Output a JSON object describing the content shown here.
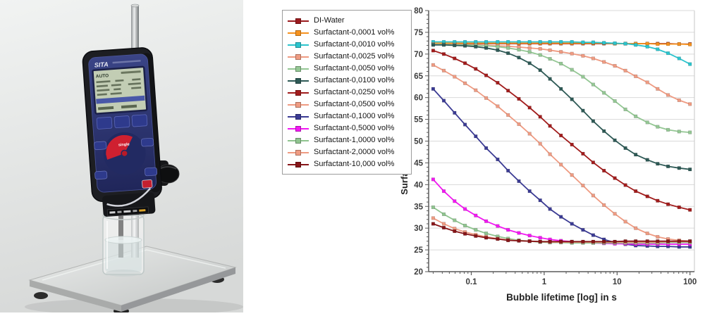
{
  "page": {
    "background": "#ffffff"
  },
  "photo": {
    "description": "bubble pressure tensiometer on stand with beaker",
    "brand": "SITA",
    "screen_status": "AUTO",
    "pad_button": "single",
    "colors": {
      "backdrop_top": "#f0f2f1",
      "backdrop_bottom": "#d7d9d8",
      "device_body": "#1d1e22",
      "device_face": "#2a3170",
      "control_pad_red": "#cf2030",
      "lcd_green": "#c2cdb4",
      "steel": "#c9cccb"
    }
  },
  "chart_data": {
    "type": "line",
    "x_scale": "log",
    "title": "",
    "xlabel": "Bubble lifetime [log] in s",
    "ylabel": "Surface tension in mN/m",
    "xlim": [
      0.026,
      115
    ],
    "ylim": [
      20,
      80
    ],
    "y_tick_step": 5,
    "x_major_ticks": [
      0.1,
      1,
      10,
      100
    ],
    "x_tick_labels": [
      "0.1",
      "1",
      "10",
      "100"
    ],
    "grid": "horizontal",
    "legend_position": "outside-left",
    "marker": "square",
    "x": [
      0.03,
      0.042,
      0.059,
      0.082,
      0.115,
      0.16,
      0.23,
      0.32,
      0.45,
      0.63,
      0.88,
      1.2,
      1.7,
      2.4,
      3.4,
      4.7,
      6.6,
      9.3,
      13,
      18,
      26,
      36,
      50,
      71,
      100
    ],
    "series": [
      {
        "name": "DI-Water",
        "color": "#9B1B1E",
        "values": [
          72.4,
          72.4,
          72.4,
          72.4,
          72.4,
          72.4,
          72.4,
          72.4,
          72.4,
          72.4,
          72.4,
          72.4,
          72.4,
          72.4,
          72.4,
          72.4,
          72.4,
          72.4,
          72.4,
          72.4,
          72.4,
          72.4,
          72.4,
          72.3,
          72.3
        ]
      },
      {
        "name": "Surfactant-0,0001 vol%",
        "color": "#F6921E",
        "values": [
          72.5,
          72.5,
          72.5,
          72.5,
          72.5,
          72.5,
          72.5,
          72.5,
          72.5,
          72.5,
          72.5,
          72.5,
          72.5,
          72.5,
          72.5,
          72.5,
          72.5,
          72.4,
          72.4,
          72.4,
          72.4,
          72.3,
          72.3,
          72.3,
          72.2
        ]
      },
      {
        "name": "Surfactant-0,0010 vol%",
        "color": "#2BC4CD",
        "values": [
          72.8,
          72.8,
          72.8,
          72.8,
          72.8,
          72.8,
          72.8,
          72.8,
          72.8,
          72.8,
          72.8,
          72.8,
          72.8,
          72.8,
          72.7,
          72.7,
          72.6,
          72.5,
          72.4,
          72.1,
          71.7,
          71.1,
          70.2,
          69.0,
          67.7
        ]
      },
      {
        "name": "Surfactant-0,0025 vol%",
        "color": "#EF9B82",
        "values": [
          72.3,
          72.2,
          72.2,
          72.1,
          72.1,
          72.0,
          71.9,
          71.8,
          71.6,
          71.4,
          71.2,
          70.9,
          70.5,
          70.1,
          69.6,
          69.0,
          68.2,
          67.3,
          66.2,
          64.9,
          63.5,
          62.0,
          60.6,
          59.4,
          58.5
        ]
      },
      {
        "name": "Surfactant-0,0050 vol%",
        "color": "#94C794",
        "values": [
          72.2,
          72.2,
          72.1,
          72.1,
          72.0,
          71.9,
          71.7,
          71.4,
          71.0,
          70.5,
          69.8,
          68.9,
          67.8,
          66.4,
          64.8,
          63.0,
          61.1,
          59.2,
          57.3,
          55.7,
          54.3,
          53.3,
          52.6,
          52.2,
          52.0
        ]
      },
      {
        "name": "Surfactant-0,0100 vol%",
        "color": "#2E5A56",
        "values": [
          72.1,
          72.1,
          72.0,
          71.9,
          71.7,
          71.4,
          70.9,
          70.2,
          69.2,
          67.9,
          66.3,
          64.3,
          62.0,
          59.6,
          57.0,
          54.6,
          52.3,
          50.2,
          48.4,
          46.9,
          45.7,
          44.8,
          44.2,
          43.8,
          43.5
        ]
      },
      {
        "name": "Surfactant-0,0250 vol%",
        "color": "#A21C1C",
        "values": [
          70.8,
          70.0,
          69.0,
          67.9,
          66.6,
          65.1,
          63.4,
          61.6,
          59.7,
          57.7,
          55.6,
          53.5,
          51.3,
          49.2,
          47.1,
          45.1,
          43.2,
          41.5,
          39.9,
          38.5,
          37.3,
          36.3,
          35.5,
          34.8,
          34.2
        ]
      },
      {
        "name": "Surfactant-0,0500 vol%",
        "color": "#EF9B82",
        "values": [
          67.5,
          66.2,
          64.8,
          63.3,
          61.7,
          59.9,
          58.0,
          56.0,
          53.9,
          51.7,
          49.4,
          47.0,
          44.6,
          42.2,
          39.8,
          37.5,
          35.3,
          33.3,
          31.5,
          30.0,
          28.8,
          28.0,
          27.5,
          27.2,
          27.0
        ]
      },
      {
        "name": "Surfactant-0,1000 vol%",
        "color": "#3B3B94",
        "values": [
          62.0,
          59.3,
          56.5,
          53.8,
          51.1,
          48.4,
          45.8,
          43.2,
          40.8,
          38.5,
          36.4,
          34.4,
          32.6,
          31.0,
          29.6,
          28.4,
          27.4,
          26.7,
          26.3,
          26.0,
          25.9,
          25.8,
          25.8,
          25.7,
          25.7
        ]
      },
      {
        "name": "Surfactant-0,5000 vol%",
        "color": "#F218F2",
        "values": [
          41.2,
          38.5,
          36.2,
          34.4,
          32.9,
          31.6,
          30.5,
          29.6,
          28.9,
          28.3,
          27.8,
          27.4,
          27.1,
          26.9,
          26.7,
          26.6,
          26.5,
          26.4,
          26.4,
          26.3,
          26.3,
          26.3,
          26.3,
          26.3,
          26.3
        ]
      },
      {
        "name": "Surfactant-1,0000 vol%",
        "color": "#8FC48F",
        "values": [
          34.8,
          33.2,
          31.8,
          30.6,
          29.6,
          28.8,
          28.1,
          27.6,
          27.2,
          27.0,
          26.8,
          26.7,
          26.7,
          26.6,
          26.6,
          26.6,
          26.6,
          26.6,
          26.6,
          26.6,
          26.6,
          26.6,
          26.7,
          26.7,
          26.7
        ]
      },
      {
        "name": "Surfactant-2,0000 vol%",
        "color": "#EF9B82",
        "values": [
          32.3,
          31.0,
          29.9,
          29.1,
          28.5,
          28.0,
          27.6,
          27.3,
          27.1,
          27.0,
          26.9,
          26.8,
          26.8,
          26.8,
          26.8,
          26.8,
          26.8,
          26.8,
          26.8,
          26.8,
          26.8,
          26.8,
          26.9,
          26.9,
          26.9
        ]
      },
      {
        "name": "Surfactant-10,000 vol%",
        "color": "#871518",
        "values": [
          31.0,
          30.1,
          29.3,
          28.7,
          28.2,
          27.8,
          27.5,
          27.2,
          27.1,
          27.0,
          26.9,
          26.9,
          26.9,
          26.9,
          26.9,
          26.9,
          26.9,
          26.9,
          27.0,
          27.0,
          27.0,
          27.0,
          27.0,
          27.0,
          27.0
        ]
      }
    ]
  },
  "style": {
    "grid_color": "#d9d9d9",
    "plot_border_color": "#c7c7c7",
    "axis_color": "#5a5a5a",
    "tick_label_color": "#3c3c3c",
    "axis_title_color": "#222222",
    "legend_border": "#9c9c9c"
  }
}
